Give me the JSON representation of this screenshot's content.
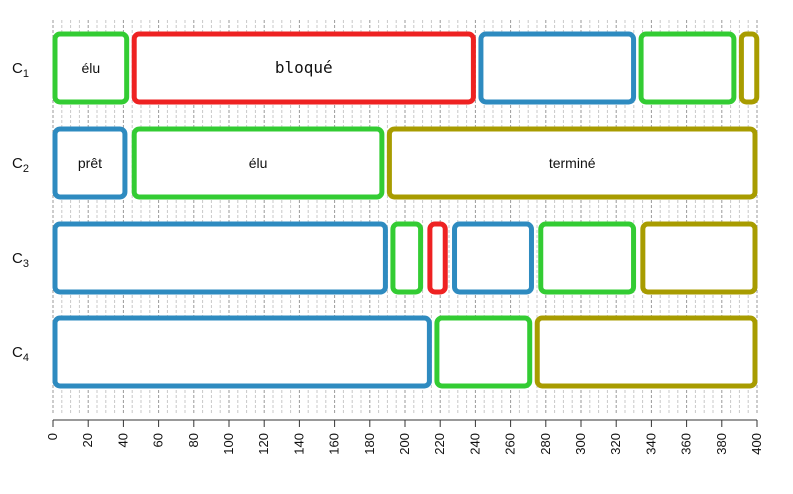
{
  "chart_data": {
    "type": "gantt",
    "xlim": [
      0,
      400
    ],
    "x_ticks": [
      0,
      20,
      40,
      60,
      80,
      100,
      120,
      140,
      160,
      180,
      200,
      220,
      240,
      260,
      280,
      300,
      320,
      340,
      360,
      380,
      400
    ],
    "minor_grid_step": 5,
    "colors": {
      "élu": "#33cc33",
      "bloqué": "#ee2222",
      "prêt": "#2e8bc0",
      "terminé": "#a89c00"
    },
    "rows": [
      {
        "label_base": "C",
        "label_sub": "1",
        "segments": [
          {
            "state": "élu",
            "start": 0,
            "end": 43,
            "label": "élu"
          },
          {
            "state": "bloqué",
            "start": 45,
            "end": 240,
            "label": "bloqué"
          },
          {
            "state": "prêt",
            "start": 242,
            "end": 331,
            "label": ""
          },
          {
            "state": "élu",
            "start": 333,
            "end": 388,
            "label": ""
          },
          {
            "state": "terminé",
            "start": 390,
            "end": 401,
            "label": ""
          }
        ]
      },
      {
        "label_base": "C",
        "label_sub": "2",
        "segments": [
          {
            "state": "prêt",
            "start": 0,
            "end": 42,
            "label": "prêt"
          },
          {
            "state": "élu",
            "start": 45,
            "end": 188,
            "label": "élu"
          },
          {
            "state": "terminé",
            "start": 190,
            "end": 400,
            "label": "terminé"
          }
        ]
      },
      {
        "label_base": "C",
        "label_sub": "3",
        "segments": [
          {
            "state": "prêt",
            "start": 0,
            "end": 190,
            "label": ""
          },
          {
            "state": "élu",
            "start": 192,
            "end": 210,
            "label": ""
          },
          {
            "state": "bloqué",
            "start": 213,
            "end": 224,
            "label": ""
          },
          {
            "state": "prêt",
            "start": 227,
            "end": 273,
            "label": ""
          },
          {
            "state": "élu",
            "start": 276,
            "end": 331,
            "label": ""
          },
          {
            "state": "terminé",
            "start": 334,
            "end": 400,
            "label": ""
          }
        ]
      },
      {
        "label_base": "C",
        "label_sub": "4",
        "segments": [
          {
            "state": "prêt",
            "start": 0,
            "end": 215,
            "label": ""
          },
          {
            "state": "élu",
            "start": 217,
            "end": 272,
            "label": ""
          },
          {
            "state": "terminé",
            "start": 274,
            "end": 400,
            "label": ""
          }
        ]
      }
    ]
  }
}
